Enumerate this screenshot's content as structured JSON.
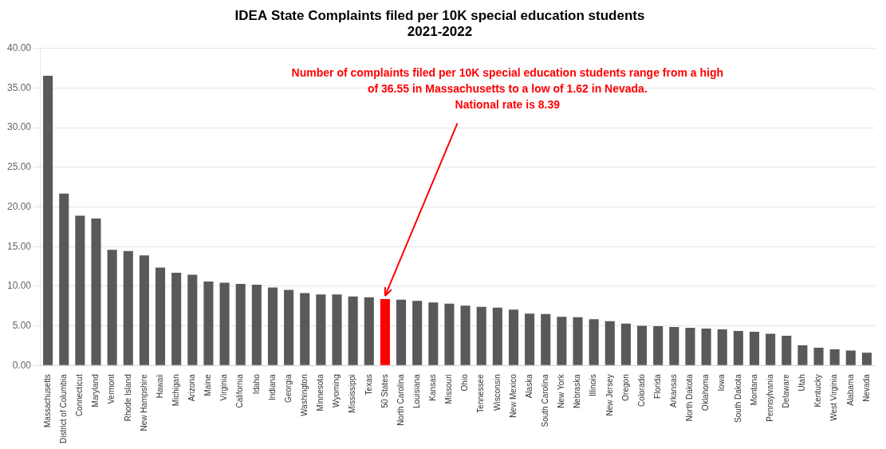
{
  "chart_data": {
    "type": "bar",
    "title": "IDEA State Complaints filed per 10K special education students\n2021-2022",
    "categories": [
      "Massachusetts",
      "District of Columbia",
      "Connecticut",
      "Maryland",
      "Vermont",
      "Rhode Island",
      "New Hampshire",
      "Hawaii",
      "Michigan",
      "Arizona",
      "Maine",
      "Virginia",
      "California",
      "Idaho",
      "Indiana",
      "Georgia",
      "Washington",
      "Minnesota",
      "Wyoming",
      "Mississippi",
      "Texas",
      "50 States",
      "North Carolina",
      "Louisiana",
      "Kansas",
      "Missouri",
      "Ohio",
      "Tennessee",
      "Wisconsin",
      "New Mexico",
      "Alaska",
      "South Carolina",
      "New York",
      "Nebraska",
      "Illinois",
      "New Jersey",
      "Oregon",
      "Colorado",
      "Florida",
      "Arkansas",
      "North Dakota",
      "Oklahoma",
      "Iowa",
      "South Dakota",
      "Montana",
      "Pennsylvania",
      "Delaware",
      "Utah",
      "Kentucky",
      "West Virginia",
      "Alabama",
      "Nevada"
    ],
    "values": [
      36.55,
      21.7,
      18.9,
      18.55,
      14.6,
      14.45,
      13.9,
      12.35,
      11.7,
      11.45,
      10.6,
      10.45,
      10.3,
      10.2,
      9.85,
      9.55,
      9.15,
      8.95,
      8.95,
      8.7,
      8.6,
      8.39,
      8.3,
      8.15,
      7.95,
      7.8,
      7.55,
      7.4,
      7.3,
      7.05,
      6.55,
      6.5,
      6.15,
      6.1,
      5.85,
      5.6,
      5.3,
      5.0,
      4.95,
      4.85,
      4.75,
      4.65,
      4.55,
      4.35,
      4.25,
      4.0,
      3.75,
      2.55,
      2.25,
      2.05,
      1.9,
      1.62
    ],
    "colors": [
      "#595959",
      "#595959",
      "#595959",
      "#595959",
      "#595959",
      "#595959",
      "#595959",
      "#595959",
      "#595959",
      "#595959",
      "#595959",
      "#595959",
      "#595959",
      "#595959",
      "#595959",
      "#595959",
      "#595959",
      "#595959",
      "#595959",
      "#595959",
      "#595959",
      "#FF0000",
      "#595959",
      "#595959",
      "#595959",
      "#595959",
      "#595959",
      "#595959",
      "#595959",
      "#595959",
      "#595959",
      "#595959",
      "#595959",
      "#595959",
      "#595959",
      "#595959",
      "#595959",
      "#595959",
      "#595959",
      "#595959",
      "#595959",
      "#595959",
      "#595959",
      "#595959",
      "#595959",
      "#595959",
      "#595959",
      "#595959",
      "#595959",
      "#595959",
      "#595959",
      "#595959"
    ],
    "ylim": [
      0,
      40
    ],
    "yticks": [
      {
        "value": 0,
        "label": "0.00"
      },
      {
        "value": 5,
        "label": "5.00"
      },
      {
        "value": 10,
        "label": "10.00"
      },
      {
        "value": 15,
        "label": "15.00"
      },
      {
        "value": 20,
        "label": "20.00"
      },
      {
        "value": 25,
        "label": "25.00"
      },
      {
        "value": 30,
        "label": "30.00"
      },
      {
        "value": 35,
        "label": "35.00"
      },
      {
        "value": 40,
        "label": "40.00"
      }
    ],
    "grid": true,
    "annotations": [
      {
        "text": "Number of complaints filed per 10K special education students range from a high\nof 36.55 in Massachusetts to a low of 1.62 in Nevada.\nNational rate is 8.39",
        "color": "#FF0000",
        "category": "50 States"
      }
    ]
  }
}
